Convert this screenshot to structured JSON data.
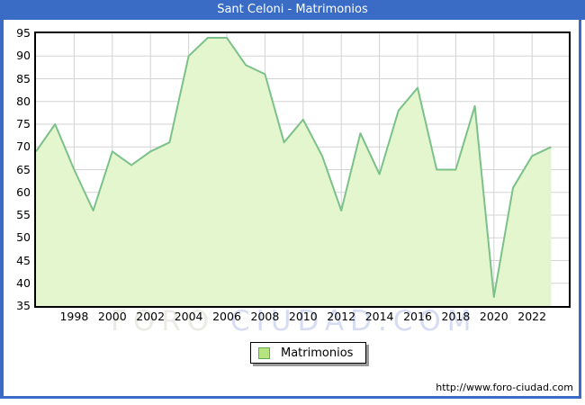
{
  "title_bar": {
    "title": "Sant Celoni - Matrimonios"
  },
  "chart_data": {
    "type": "area",
    "title": "Sant Celoni - Matrimonios",
    "series_name": "Matrimonios",
    "x": [
      1996,
      1997,
      1998,
      1999,
      2000,
      2001,
      2002,
      2003,
      2004,
      2005,
      2006,
      2007,
      2008,
      2009,
      2010,
      2011,
      2012,
      2013,
      2014,
      2015,
      2016,
      2017,
      2018,
      2019,
      2020,
      2021,
      2022,
      2023
    ],
    "values": [
      69,
      75,
      65,
      56,
      69,
      66,
      69,
      71,
      90,
      94,
      94,
      88,
      86,
      71,
      76,
      68,
      56,
      73,
      64,
      78,
      83,
      65,
      65,
      79,
      37,
      61,
      68,
      70
    ],
    "ylim": [
      35,
      95
    ],
    "y_ticks": [
      35,
      40,
      45,
      50,
      55,
      60,
      65,
      70,
      75,
      80,
      85,
      90,
      95
    ],
    "x_ticks": [
      1998,
      2000,
      2002,
      2004,
      2006,
      2008,
      2010,
      2012,
      2014,
      2016,
      2018,
      2020,
      2022
    ],
    "grid": true,
    "legend_position": "bottom-center",
    "colors": {
      "area_fill": "#e3f6ce",
      "line": "#7cc189",
      "gridline": "#d3d3d3",
      "frame_blue": "#3a6cc6",
      "plot_border": "#000000",
      "legend_swatch": "#b5e480"
    }
  },
  "legend": {
    "label": "Matrimonios"
  },
  "watermark": {
    "part1": "FORO ",
    "part2": "CIUDAD.COM"
  },
  "footer": {
    "url": "http://www.foro-ciudad.com"
  }
}
